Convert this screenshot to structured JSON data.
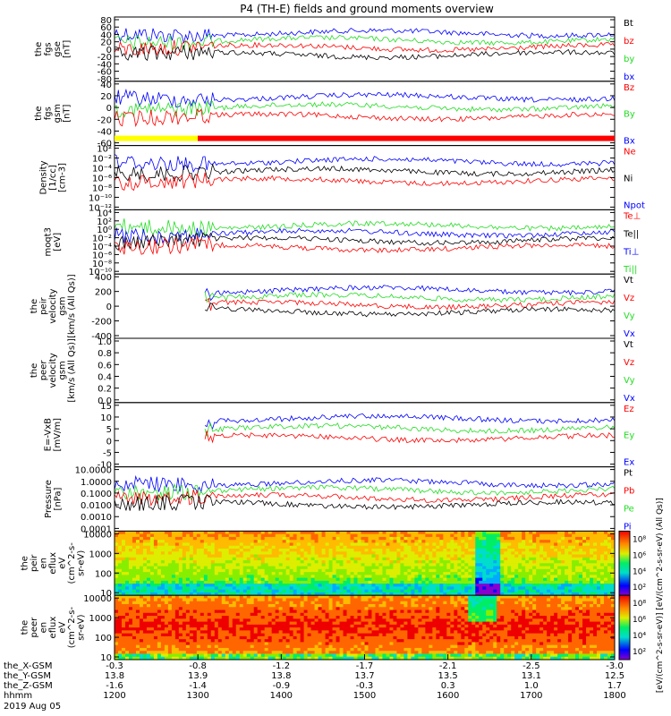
{
  "title": "P4 (TH-E) fields and ground moments overview",
  "colors": {
    "black": "#000000",
    "red": "#ff0000",
    "green": "#22dd22",
    "blue": "#0000ff",
    "yellow": "#ffff00"
  },
  "chart_data": {
    "type": "line",
    "time_axis": {
      "ticks": [
        "1200",
        "1300",
        "1400",
        "1500",
        "1600",
        "1700",
        "1800"
      ],
      "range_hhmm": [
        "1200",
        "1800"
      ],
      "label": "hhmm",
      "date": "2019 Aug 05"
    },
    "ephemeris": [
      {
        "label": "the_X-GSM",
        "values": [
          "-0.3",
          "-0.8",
          "-1.2",
          "-1.7",
          "-2.1",
          "-2.5",
          "-3.0"
        ]
      },
      {
        "label": "the_Y-GSM",
        "values": [
          "13.8",
          "13.9",
          "13.8",
          "13.7",
          "13.5",
          "13.1",
          "12.5"
        ]
      },
      {
        "label": "the_Z-GSM",
        "values": [
          "-1.6",
          "-1.4",
          "-0.9",
          "-0.3",
          "0.3",
          "1.0",
          "1.7"
        ]
      }
    ],
    "panels": [
      {
        "id": "fgs-gse",
        "ylabel": [
          "the",
          "fgs",
          "gse",
          "[nT]"
        ],
        "scale": "linear",
        "yticks": [
          "80",
          "60",
          "40",
          "20",
          "0",
          "-20",
          "-40",
          "-60",
          "-80"
        ],
        "legend": [
          {
            "name": "Bt",
            "color": "#000000"
          },
          {
            "name": "bz",
            "color": "#ff0000"
          },
          {
            "name": "by",
            "color": "#22dd22"
          },
          {
            "name": "bx",
            "color": "#0000ff"
          }
        ]
      },
      {
        "id": "fgs-gsm",
        "ylabel": [
          "the",
          "fgs",
          "gsm",
          "[nT]"
        ],
        "scale": "linear",
        "yticks": [
          "40",
          "20",
          "0",
          "-20",
          "-40",
          "-60"
        ],
        "legend": [
          {
            "name": "Bz",
            "color": "#ff0000"
          },
          {
            "name": "By",
            "color": "#22dd22"
          },
          {
            "name": "Bx",
            "color": "#0000ff"
          }
        ]
      },
      {
        "id": "density",
        "ylabel": [
          "Density",
          "[1/cc]",
          "[cm-3]"
        ],
        "scale": "log",
        "yticks": [
          "10²",
          "10⁻²",
          "10⁻⁴",
          "10⁻⁶",
          "10⁻⁸",
          "10⁻¹⁰",
          "10⁻¹²"
        ],
        "legend": [
          {
            "name": "Ne",
            "color": "#ff0000"
          },
          {
            "name": "Ni",
            "color": "#000000"
          },
          {
            "name": "Npot",
            "color": "#0000ff"
          }
        ]
      },
      {
        "id": "temperature",
        "ylabel": [
          "moqt3",
          "[eV]"
        ],
        "scale": "log",
        "yticks": [
          "10⁴",
          "10²",
          "10⁰",
          "10⁻²",
          "10⁻⁴",
          "10⁻⁶",
          "10⁻⁸",
          "10⁻¹⁰"
        ],
        "legend": [
          {
            "name": "Te⊥",
            "color": "#ff0000"
          },
          {
            "name": "Te||",
            "color": "#000000"
          },
          {
            "name": "Ti⊥",
            "color": "#0000ff"
          },
          {
            "name": "Ti||",
            "color": "#22dd22"
          }
        ]
      },
      {
        "id": "peir-velocity",
        "ylabel": [
          "the",
          "peir",
          "velocity",
          "gsm",
          "[km/s (All Qs)]"
        ],
        "scale": "linear",
        "yticks": [
          "400",
          "200",
          "0",
          "-200",
          "-400"
        ],
        "legend": [
          {
            "name": "Vt",
            "color": "#000000"
          },
          {
            "name": "Vz",
            "color": "#ff0000"
          },
          {
            "name": "Vy",
            "color": "#22dd22"
          },
          {
            "name": "Vx",
            "color": "#0000ff"
          }
        ]
      },
      {
        "id": "peer-velocity",
        "ylabel": [
          "the",
          "peer",
          "velocity",
          "gsm",
          "[km/s (All Qs)]"
        ],
        "scale": "linear",
        "yticks": [
          "1.0",
          "0.8",
          "0.6",
          "0.4",
          "0.2",
          "0.0"
        ],
        "legend": [
          {
            "name": "Vt",
            "color": "#000000"
          },
          {
            "name": "Vz",
            "color": "#ff0000"
          },
          {
            "name": "Vy",
            "color": "#22dd22"
          },
          {
            "name": "Vx",
            "color": "#0000ff"
          }
        ]
      },
      {
        "id": "efield",
        "ylabel": [
          "E=-VxB",
          "[mV/m]"
        ],
        "scale": "linear",
        "yticks": [
          "15",
          "10",
          "5",
          "0",
          "-5",
          "-10"
        ],
        "legend": [
          {
            "name": "Ez",
            "color": "#ff0000"
          },
          {
            "name": "Ey",
            "color": "#22dd22"
          },
          {
            "name": "Ex",
            "color": "#0000ff"
          }
        ]
      },
      {
        "id": "pressure",
        "ylabel": [
          "Pressure",
          "[nPa]"
        ],
        "scale": "log",
        "yticks": [
          "10.0000",
          "1.0000",
          "0.1000",
          "0.0100",
          "0.0010",
          "0.0001"
        ],
        "legend": [
          {
            "name": "Pt",
            "color": "#000000"
          },
          {
            "name": "Pb",
            "color": "#ff0000"
          },
          {
            "name": "Pe",
            "color": "#22dd22"
          },
          {
            "name": "Pi",
            "color": "#0000ff"
          }
        ]
      },
      {
        "id": "peir-eflux",
        "ylabel": [
          "the",
          "peir",
          "en",
          "eflux",
          "eV",
          "(cm^2-s-",
          "sr-eV)"
        ],
        "scale": "log",
        "yticks": [
          "10000",
          "1000",
          "100",
          "10"
        ],
        "spectrogram": true
      },
      {
        "id": "peer-eflux",
        "ylabel": [
          "the",
          "peer",
          "en",
          "eflux",
          "eV",
          "(cm^2-s-",
          "sr-eV)"
        ],
        "scale": "log",
        "yticks": [
          "10000",
          "1000",
          "100",
          "10"
        ],
        "spectrogram": true
      }
    ],
    "colorbar": {
      "label": "[eV/(cm^2-s-sr-eV)] [eV/(cm^2-s-sr-eV) (All Qs)]",
      "upper_ticks": [
        "10⁸",
        "10⁶",
        "10⁴",
        "10²"
      ],
      "lower_ticks": [
        "10⁸",
        "10⁶",
        "10⁴",
        "10²"
      ]
    }
  }
}
